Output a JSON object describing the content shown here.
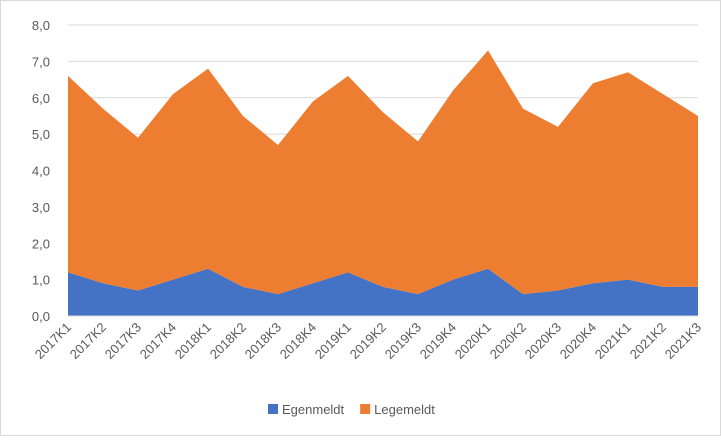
{
  "chart_data": {
    "type": "area",
    "stacked": true,
    "categories": [
      "2017K1",
      "2017K2",
      "2017K3",
      "2017K4",
      "2018K1",
      "2018K2",
      "2018K3",
      "2018K4",
      "2019K1",
      "2019K2",
      "2019K3",
      "2019K4",
      "2020K1",
      "2020K2",
      "2020K3",
      "2020K4",
      "2021K1",
      "2021K2",
      "2021K3"
    ],
    "series": [
      {
        "name": "Egenmeldt",
        "color": "#4472c4",
        "values": [
          1.2,
          0.9,
          0.7,
          1.0,
          1.3,
          0.8,
          0.6,
          0.9,
          1.2,
          0.8,
          0.6,
          1.0,
          1.3,
          0.6,
          0.7,
          0.9,
          1.0,
          0.8,
          0.8
        ]
      },
      {
        "name": "Legemeldt",
        "color": "#ed7d31",
        "values": [
          5.4,
          4.8,
          4.2,
          5.1,
          5.5,
          4.7,
          4.1,
          5.0,
          5.4,
          4.8,
          4.2,
          5.2,
          6.0,
          5.1,
          4.5,
          5.5,
          5.7,
          5.3,
          4.7
        ]
      }
    ],
    "ylim": [
      0,
      8
    ],
    "yticks": [
      {
        "value": 0,
        "label": "0,0"
      },
      {
        "value": 1,
        "label": "1,0"
      },
      {
        "value": 2,
        "label": "2,0"
      },
      {
        "value": 3,
        "label": "3,0"
      },
      {
        "value": 4,
        "label": "4,0"
      },
      {
        "value": 5,
        "label": "5,0"
      },
      {
        "value": 6,
        "label": "6,0"
      },
      {
        "value": 7,
        "label": "7,0"
      },
      {
        "value": 8,
        "label": "8,0"
      }
    ],
    "grid": true,
    "legend": "bottom"
  }
}
